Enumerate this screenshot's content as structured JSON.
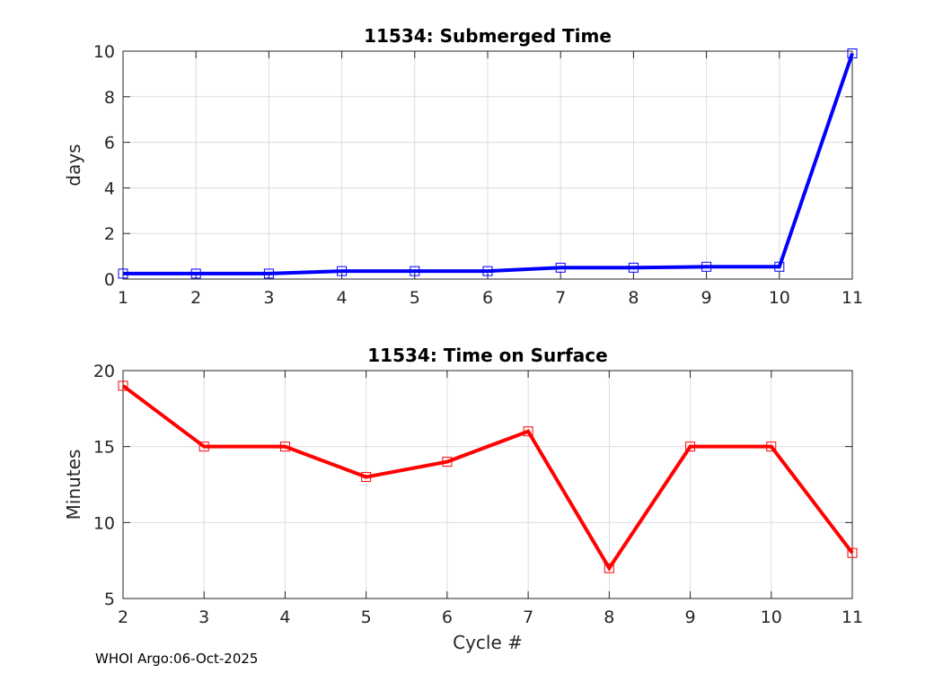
{
  "footer": "WHOI Argo:06-Oct-2025",
  "chart_data": [
    {
      "type": "line",
      "title": "11534: Submerged Time",
      "xlabel": "",
      "ylabel": "days",
      "x": [
        1,
        2,
        3,
        4,
        5,
        6,
        7,
        8,
        9,
        10,
        11
      ],
      "series": [
        {
          "name": "Submerged Time",
          "color": "#0000ff",
          "values": [
            0.24,
            0.24,
            0.24,
            0.35,
            0.35,
            0.35,
            0.5,
            0.5,
            0.54,
            0.54,
            9.9
          ]
        }
      ],
      "xlim": [
        1,
        11
      ],
      "ylim": [
        0,
        10
      ],
      "xticks": [
        "1",
        "2",
        "3",
        "4",
        "5",
        "6",
        "7",
        "8",
        "9",
        "10",
        "11"
      ],
      "yticks": [
        "0",
        "2",
        "4",
        "6",
        "8",
        "10"
      ],
      "grid": true
    },
    {
      "type": "line",
      "title": "11534: Time on Surface",
      "xlabel": "Cycle #",
      "ylabel": "Minutes",
      "x": [
        2,
        3,
        4,
        5,
        6,
        7,
        8,
        9,
        10,
        11
      ],
      "series": [
        {
          "name": "Time on Surface",
          "color": "#ff0000",
          "values": [
            19,
            15,
            15,
            13,
            14,
            16,
            7,
            15,
            15,
            8
          ]
        }
      ],
      "xlim": [
        2,
        11
      ],
      "ylim": [
        5,
        20
      ],
      "xticks": [
        "2",
        "3",
        "4",
        "5",
        "6",
        "7",
        "8",
        "9",
        "10",
        "11"
      ],
      "yticks": [
        "5",
        "10",
        "15",
        "20"
      ],
      "grid": true
    }
  ]
}
